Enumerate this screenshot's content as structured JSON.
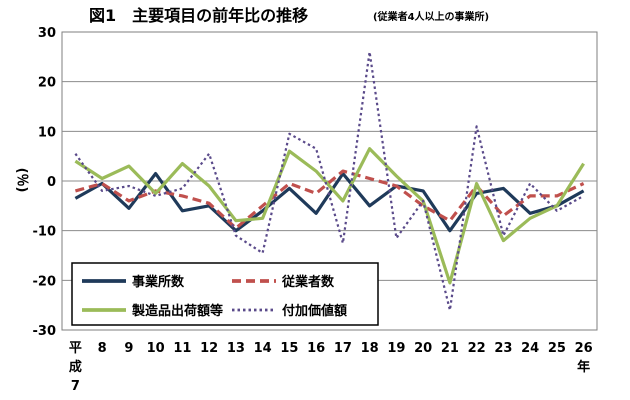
{
  "chart_data": {
    "type": "line",
    "title": "図1　主要項目の前年比の推移",
    "subtitle": "(従業者4人以上の事業所)",
    "ylabel": "(％)",
    "xlabel": "",
    "ylim": [
      -30,
      30
    ],
    "yticks": [
      30,
      20,
      10,
      0,
      -10,
      -20,
      -30
    ],
    "grid": true,
    "legend_position": "bottom-left",
    "x_labels": [
      "平\n成\n7",
      "8",
      "9",
      "10",
      "11",
      "12",
      "13",
      "14",
      "15",
      "16",
      "17",
      "18",
      "19",
      "20",
      "21",
      "22",
      "23",
      "24",
      "25",
      "26\n年"
    ],
    "series": [
      {
        "name": "事業所数",
        "color": "#1f3a5a",
        "style": "solid",
        "values": [
          -3.5,
          -0.5,
          -5.5,
          1.5,
          -6,
          -5,
          -10,
          -6,
          -1.5,
          -6.5,
          1.5,
          -5,
          -1,
          -2,
          -10,
          -2.5,
          -1.5,
          -6.5,
          -5,
          -2
        ]
      },
      {
        "name": "従業者数",
        "color": "#c0504d",
        "style": "dashed",
        "values": [
          -2,
          -0.5,
          -4,
          -2,
          -3,
          -4.5,
          -9.5,
          -5,
          -0.5,
          -2.5,
          2,
          0.5,
          -1,
          -5,
          -8,
          -1,
          -7,
          -3,
          -3,
          -0.5
        ]
      },
      {
        "name": "製造品出荷額等",
        "color": "#9bbb59",
        "style": "solid",
        "values": [
          4,
          0.5,
          3,
          -2.5,
          3.5,
          -1,
          -8,
          -7.5,
          6,
          2,
          -4,
          6.5,
          1,
          -4,
          -20.5,
          -0.5,
          -12,
          -7.5,
          -5,
          3.5
        ]
      },
      {
        "name": "付加価値額",
        "color": "#5a4a8a",
        "style": "dotted",
        "values": [
          5.5,
          -2,
          -1,
          -3,
          -1.5,
          5.5,
          -11,
          -14.5,
          9.5,
          6.5,
          -12.5,
          26,
          -11.5,
          -4,
          -26,
          11,
          -11,
          -0.5,
          -6,
          -3
        ]
      }
    ]
  }
}
